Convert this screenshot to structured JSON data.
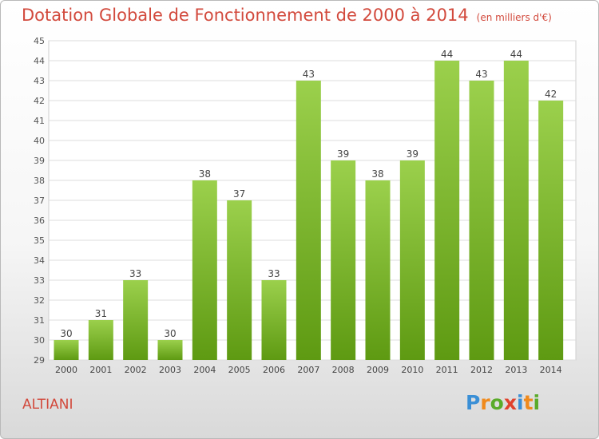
{
  "chart_data": {
    "type": "bar",
    "title": "Dotation Globale de Fonctionnement de 2000 à 2014",
    "subtitle": "(en milliers d'€)",
    "categories": [
      "2000",
      "2001",
      "2002",
      "2003",
      "2004",
      "2005",
      "2006",
      "2007",
      "2008",
      "2009",
      "2010",
      "2011",
      "2012",
      "2013",
      "2014"
    ],
    "values": [
      30,
      31,
      33,
      30,
      38,
      37,
      33,
      43,
      39,
      38,
      39,
      44,
      43,
      44,
      42
    ],
    "ylim": [
      29,
      45
    ],
    "yticks": [
      29,
      30,
      31,
      32,
      33,
      34,
      35,
      36,
      37,
      38,
      39,
      40,
      41,
      42,
      43,
      44,
      45
    ],
    "grid": true,
    "bar_color_top": "#9bd04c",
    "bar_color_bottom": "#5e9a12"
  },
  "footer": {
    "commune": "ALTIANI",
    "logo_letters": [
      {
        "ch": "P",
        "color": "#3a8fd6"
      },
      {
        "ch": "r",
        "color": "#f08a1c"
      },
      {
        "ch": "o",
        "color": "#5aab2a"
      },
      {
        "ch": "x",
        "color": "#e0422d"
      },
      {
        "ch": "i",
        "color": "#3a8fd6"
      },
      {
        "ch": "t",
        "color": "#f08a1c"
      },
      {
        "ch": "i",
        "color": "#5aab2a"
      }
    ]
  }
}
